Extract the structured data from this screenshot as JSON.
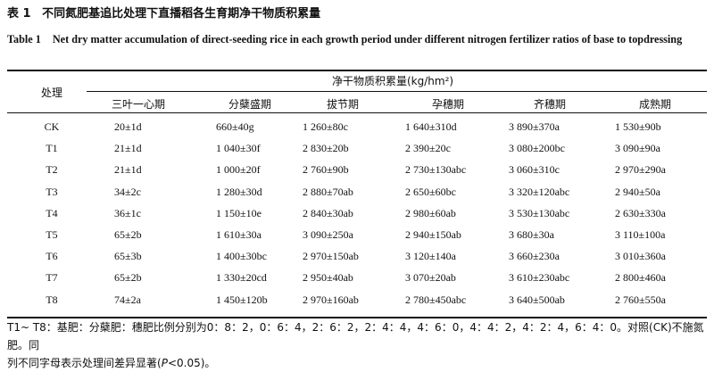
{
  "title": {
    "label_cn": "表 1",
    "text_cn": "不同氮肥基追比处理下直播稻各生育期净干物质积累量",
    "label_en": "Table 1",
    "text_en": "Net dry matter accumulation of direct-seeding rice in each growth period under different nitrogen fertilizer ratios of base to topdressing"
  },
  "table": {
    "treatment_header": "处理",
    "group_header": "净干物质积累量(kg/hm²)",
    "columns": [
      "三叶一心期",
      "分蘖盛期",
      "拔节期",
      "孕穗期",
      "齐穗期",
      "成熟期"
    ],
    "rows": [
      {
        "treatment": "CK",
        "values": [
          "20±1d",
          "660±40g",
          "1 260±80c",
          "1 640±310d",
          "3 890±370a",
          "1 530±90b"
        ]
      },
      {
        "treatment": "T1",
        "values": [
          "21±1d",
          "1 040±30f",
          "2 830±20b",
          "2 390±20c",
          "3 080±200bc",
          "3 090±90a"
        ]
      },
      {
        "treatment": "T2",
        "values": [
          "21±1d",
          "1 000±20f",
          "2 760±90b",
          "2 730±130abc",
          "3 060±310c",
          "2 970±290a"
        ]
      },
      {
        "treatment": "T3",
        "values": [
          "34±2c",
          "1 280±30d",
          "2 880±70ab",
          "2 650±60bc",
          "3 320±120abc",
          "2 940±50a"
        ]
      },
      {
        "treatment": "T4",
        "values": [
          "36±1c",
          "1 150±10e",
          "2 840±30ab",
          "2 980±60ab",
          "3 530±130abc",
          "2 630±330a"
        ]
      },
      {
        "treatment": "T5",
        "values": [
          "65±2b",
          "1 610±30a",
          "3 090±250a",
          "2 940±150ab",
          "3 680±30a",
          "3 110±100a"
        ]
      },
      {
        "treatment": "T6",
        "values": [
          "65±3b",
          "1 400±30bc",
          "2 970±150ab",
          "3 120±140a",
          "3 660±230a",
          "3 010±360a"
        ]
      },
      {
        "treatment": "T7",
        "values": [
          "65±2b",
          "1 330±20cd",
          "2 950±40ab",
          "3 070±20ab",
          "3 610±230abc",
          "2 800±460a"
        ]
      },
      {
        "treatment": "T8",
        "values": [
          "74±2a",
          "1 450±120b",
          "2 970±160ab",
          "2 780±450abc",
          "3 640±500ab",
          "2 760±550a"
        ]
      }
    ]
  },
  "footnote": {
    "line1": "T1~ T8：基肥：分蘖肥：穗肥比例分别为0：8：2，0：6：4，2：6：2，2：4：4，4：6：0，4：4：2，4：2：4，6：4：0。对照(CK)不施氮肥。同",
    "line2_pre": "列不同字母表示处理间差异显著(",
    "line2_p": "P",
    "line2_post": "<0.05)。"
  }
}
